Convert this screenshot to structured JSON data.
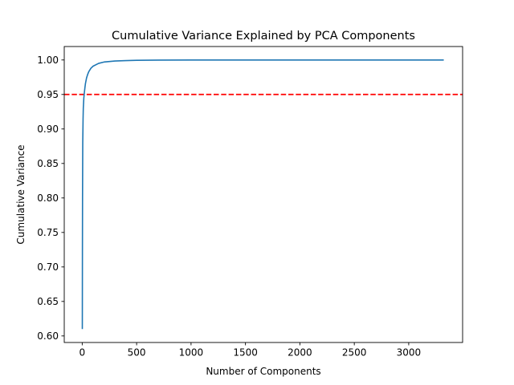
{
  "chart_data": {
    "type": "line",
    "title": "Cumulative Variance Explained by PCA Components",
    "xlabel": "Number of Components",
    "ylabel": "Cumulative Variance",
    "xlim": [
      -165,
      3495
    ],
    "ylim": [
      0.5905,
      1.0195
    ],
    "xticks": [
      0,
      500,
      1000,
      1500,
      2000,
      2500,
      3000
    ],
    "xtick_labels": [
      "0",
      "500",
      "1000",
      "1500",
      "2000",
      "2500",
      "3000"
    ],
    "yticks": [
      0.6,
      0.65,
      0.7,
      0.75,
      0.8,
      0.85,
      0.9,
      0.95,
      1.0
    ],
    "ytick_labels": [
      "0.60",
      "0.65",
      "0.70",
      "0.75",
      "0.80",
      "0.85",
      "0.90",
      "0.95",
      "1.00"
    ],
    "grid": false,
    "series": [
      {
        "color": "#1f77b4",
        "x": [
          1,
          2,
          3,
          5,
          8,
          10,
          15,
          20,
          25,
          30,
          40,
          50,
          60,
          80,
          100,
          150,
          200,
          300,
          400,
          500,
          700,
          1000,
          1500,
          2000,
          2500,
          3000,
          3322
        ],
        "y": [
          0.61,
          0.72,
          0.8,
          0.88,
          0.915,
          0.93,
          0.945,
          0.953,
          0.96,
          0.966,
          0.974,
          0.979,
          0.983,
          0.988,
          0.991,
          0.995,
          0.997,
          0.9985,
          0.9991,
          0.9995,
          0.9998,
          0.9999,
          1.0,
          1.0,
          1.0,
          1.0,
          1.0
        ]
      }
    ],
    "reference_line": {
      "orientation": "horizontal",
      "y": 0.95,
      "style": "dashed",
      "color": "#ff0000"
    }
  }
}
